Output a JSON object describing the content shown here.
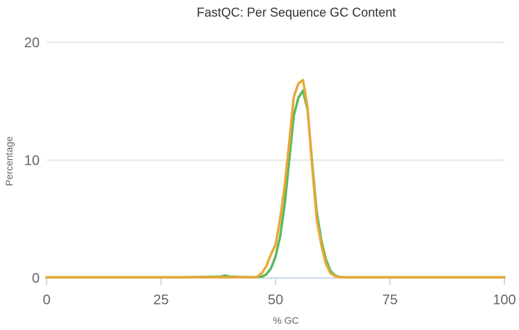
{
  "chart_data": {
    "type": "line",
    "title": "FastQC: Per Sequence GC Content",
    "xlabel": "% GC",
    "ylabel": "Percentage",
    "xlim": [
      0,
      100
    ],
    "ylim": [
      0,
      20
    ],
    "xticks": [
      "0",
      "25",
      "50",
      "75",
      "100"
    ],
    "yticks": [
      "0",
      "10",
      "20"
    ],
    "xtick_values": [
      0,
      25,
      50,
      75,
      100
    ],
    "ytick_values": [
      0,
      10,
      20
    ],
    "grid": true,
    "legend": "none",
    "series": [
      {
        "color": "#5cb85c",
        "x": [
          0,
          10,
          20,
          30,
          38,
          39,
          40,
          45,
          47,
          48,
          49,
          50,
          51,
          52,
          53,
          54,
          55,
          56,
          57,
          58,
          59,
          60,
          61,
          62,
          63,
          64,
          65,
          70,
          80,
          90,
          100
        ],
        "y": [
          0.05,
          0.05,
          0.05,
          0.05,
          0.1,
          0.2,
          0.1,
          0.05,
          0.1,
          0.3,
          0.8,
          1.8,
          3.5,
          6.2,
          10.0,
          13.8,
          15.3,
          15.9,
          14.3,
          9.8,
          5.6,
          3.2,
          1.6,
          0.6,
          0.2,
          0.08,
          0.05,
          0.05,
          0.05,
          0.05,
          0.05
        ]
      },
      {
        "color": "#e8a838",
        "x": [
          0,
          10,
          20,
          30,
          40,
          45,
          46,
          47,
          48,
          49,
          50,
          51,
          52,
          53,
          54,
          55,
          56,
          57,
          58,
          59,
          60,
          61,
          62,
          63,
          64,
          65,
          70,
          80,
          90,
          100
        ],
        "y": [
          0.05,
          0.05,
          0.05,
          0.05,
          0.05,
          0.05,
          0.1,
          0.4,
          1.0,
          2.0,
          2.8,
          5.0,
          7.8,
          11.5,
          15.4,
          16.5,
          16.8,
          14.5,
          9.5,
          5.0,
          2.8,
          1.2,
          0.4,
          0.15,
          0.05,
          0.05,
          0.05,
          0.05,
          0.05,
          0.05
        ]
      }
    ]
  }
}
